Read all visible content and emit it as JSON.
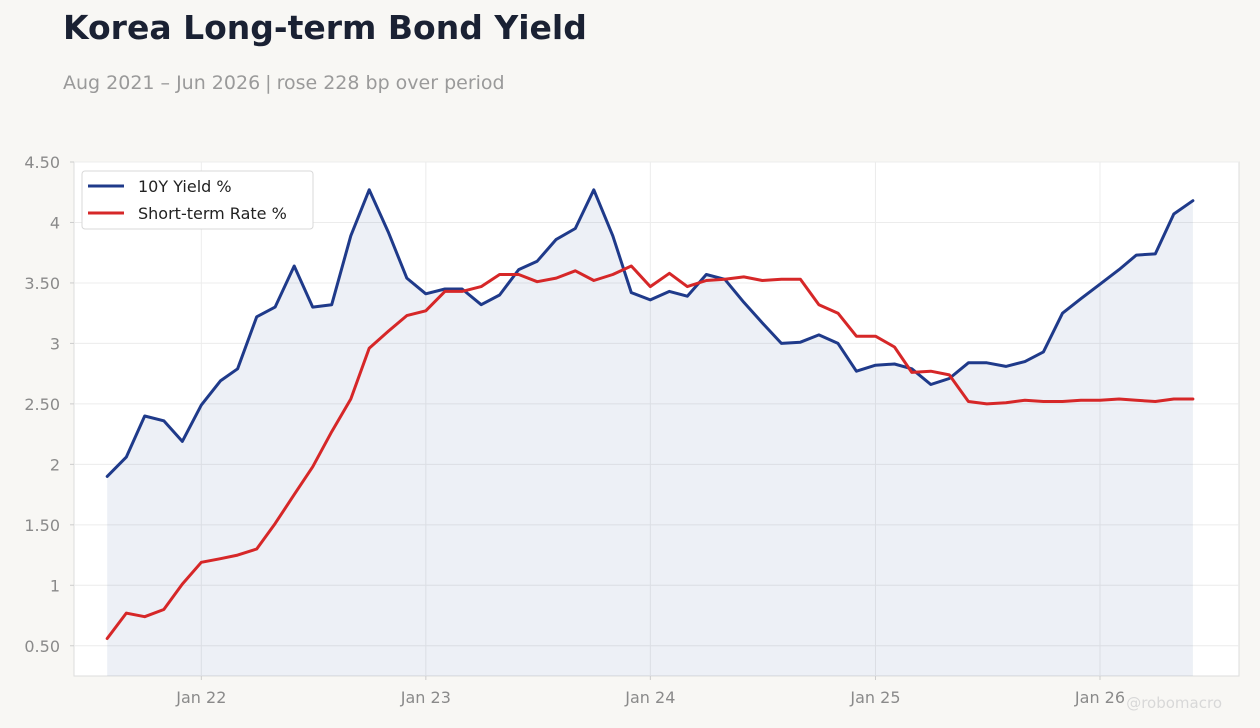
{
  "title": "Korea Long-term Bond Yield",
  "subtitle": {
    "range": "Aug 2021 – Jun 2026",
    "separator": "|",
    "note": "rose 228 bp over period"
  },
  "watermark": "@robomacro",
  "colors": {
    "background": "#f8f7f4",
    "plot_background": "#ffffff",
    "series_10y": "#1f3a8a",
    "series_short": "#d62728",
    "fill_10y": "#1f3a8a"
  },
  "chart_data": {
    "type": "line",
    "x_axis": "date",
    "xlim": [
      "2021-06-08",
      "2026-08-15"
    ],
    "ylim": [
      0.25,
      4.5
    ],
    "x_ticks": [
      {
        "date": "2022-01-01",
        "label": "Jan 22"
      },
      {
        "date": "2023-01-01",
        "label": "Jan 23"
      },
      {
        "date": "2024-01-01",
        "label": "Jan 24"
      },
      {
        "date": "2025-01-01",
        "label": "Jan 25"
      },
      {
        "date": "2026-01-01",
        "label": "Jan 26"
      }
    ],
    "y_ticks": [
      {
        "value": 0.5,
        "label": "0.50"
      },
      {
        "value": 1,
        "label": "1"
      },
      {
        "value": 1.5,
        "label": "1.50"
      },
      {
        "value": 2,
        "label": "2"
      },
      {
        "value": 2.5,
        "label": "2.50"
      },
      {
        "value": 3,
        "label": "3"
      },
      {
        "value": 3.5,
        "label": "3.50"
      },
      {
        "value": 4,
        "label": "4"
      },
      {
        "value": 4.5,
        "label": "4.50"
      }
    ],
    "grid": true,
    "legend_position": "top-left",
    "x": [
      "2021-08",
      "2021-09",
      "2021-10",
      "2021-11",
      "2021-12",
      "2022-01",
      "2022-02",
      "2022-03",
      "2022-04",
      "2022-05",
      "2022-06",
      "2022-07",
      "2022-08",
      "2022-09",
      "2022-10",
      "2022-11",
      "2022-12",
      "2023-01",
      "2023-02",
      "2023-03",
      "2023-04",
      "2023-05",
      "2023-06",
      "2023-07",
      "2023-08",
      "2023-09",
      "2023-10",
      "2023-11",
      "2023-12",
      "2024-01",
      "2024-02",
      "2024-03",
      "2024-04",
      "2024-05",
      "2024-06",
      "2024-07",
      "2024-08",
      "2024-09",
      "2024-10",
      "2024-11",
      "2024-12",
      "2025-01",
      "2025-02",
      "2025-03",
      "2025-04",
      "2025-05",
      "2025-06",
      "2025-07",
      "2025-08",
      "2025-09",
      "2025-10",
      "2025-11",
      "2025-12",
      "2026-01",
      "2026-02",
      "2026-03",
      "2026-04",
      "2026-05",
      "2026-06"
    ],
    "series": [
      {
        "name": "10Y Yield %",
        "color": "#1f3a8a",
        "filled": true,
        "values": [
          1.9,
          2.06,
          2.4,
          2.36,
          2.19,
          2.49,
          2.69,
          2.79,
          3.22,
          3.3,
          3.64,
          3.3,
          3.32,
          3.89,
          4.27,
          3.92,
          3.54,
          3.41,
          3.45,
          3.45,
          3.32,
          3.4,
          3.61,
          3.68,
          3.86,
          3.95,
          4.27,
          3.89,
          3.42,
          3.36,
          3.43,
          3.39,
          3.57,
          3.53,
          3.34,
          3.17,
          3.0,
          3.01,
          3.07,
          3.0,
          2.77,
          2.82,
          2.83,
          2.79,
          2.66,
          2.71,
          2.84,
          2.84,
          2.81,
          2.85,
          2.93,
          3.25,
          3.37,
          3.49,
          3.61,
          3.73,
          3.74,
          4.07,
          4.18
        ]
      },
      {
        "name": "Short-term Rate %",
        "color": "#d62728",
        "filled": false,
        "values": [
          0.56,
          0.77,
          0.74,
          0.8,
          1.01,
          1.19,
          1.22,
          1.25,
          1.3,
          1.51,
          1.75,
          1.98,
          2.27,
          2.54,
          2.96,
          3.1,
          3.23,
          3.27,
          3.43,
          3.43,
          3.47,
          3.57,
          3.57,
          3.51,
          3.54,
          3.6,
          3.52,
          3.57,
          3.64,
          3.47,
          3.58,
          3.47,
          3.52,
          3.53,
          3.55,
          3.52,
          3.53,
          3.53,
          3.32,
          3.25,
          3.06,
          3.06,
          2.97,
          2.76,
          2.77,
          2.74,
          2.52,
          2.5,
          2.51,
          2.53,
          2.52,
          2.52,
          2.53,
          2.53,
          2.54,
          2.53,
          2.52,
          2.54,
          2.54
        ]
      }
    ]
  }
}
